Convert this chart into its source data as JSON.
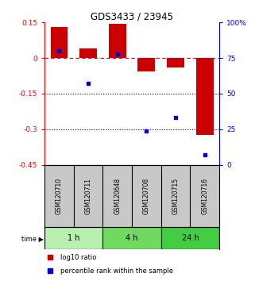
{
  "title": "GDS3433 / 23945",
  "samples": [
    "GSM120710",
    "GSM120711",
    "GSM120648",
    "GSM120708",
    "GSM120715",
    "GSM120716"
  ],
  "log10_ratio": [
    0.13,
    0.04,
    0.143,
    -0.055,
    -0.04,
    -0.325
  ],
  "percentile_rank": [
    80,
    57,
    78,
    24,
    33,
    7
  ],
  "groups": [
    {
      "label": "1 h",
      "indices": [
        0,
        1
      ],
      "color": "#b8f0b0"
    },
    {
      "label": "4 h",
      "indices": [
        2,
        3
      ],
      "color": "#70d960"
    },
    {
      "label": "24 h",
      "indices": [
        4,
        5
      ],
      "color": "#44cc44"
    }
  ],
  "left_ylim": [
    -0.45,
    0.15
  ],
  "left_yticks": [
    0.15,
    0.0,
    -0.15,
    -0.3,
    -0.45
  ],
  "left_yticklabels": [
    "0.15",
    "0",
    "-0.15",
    "-0.3",
    "-0.45"
  ],
  "right_ylim": [
    0,
    100
  ],
  "right_yticks": [
    100,
    75,
    50,
    25,
    0
  ],
  "right_yticklabels": [
    "100%",
    "75",
    "50",
    "25",
    "0"
  ],
  "bar_color": "#cc0000",
  "dot_color": "#0000cc",
  "dotted_lines": [
    -0.15,
    -0.3
  ],
  "label_bg": "#c8c8c8",
  "legend_items": [
    {
      "color": "#cc0000",
      "label": "log10 ratio"
    },
    {
      "color": "#0000cc",
      "label": "percentile rank within the sample"
    }
  ]
}
